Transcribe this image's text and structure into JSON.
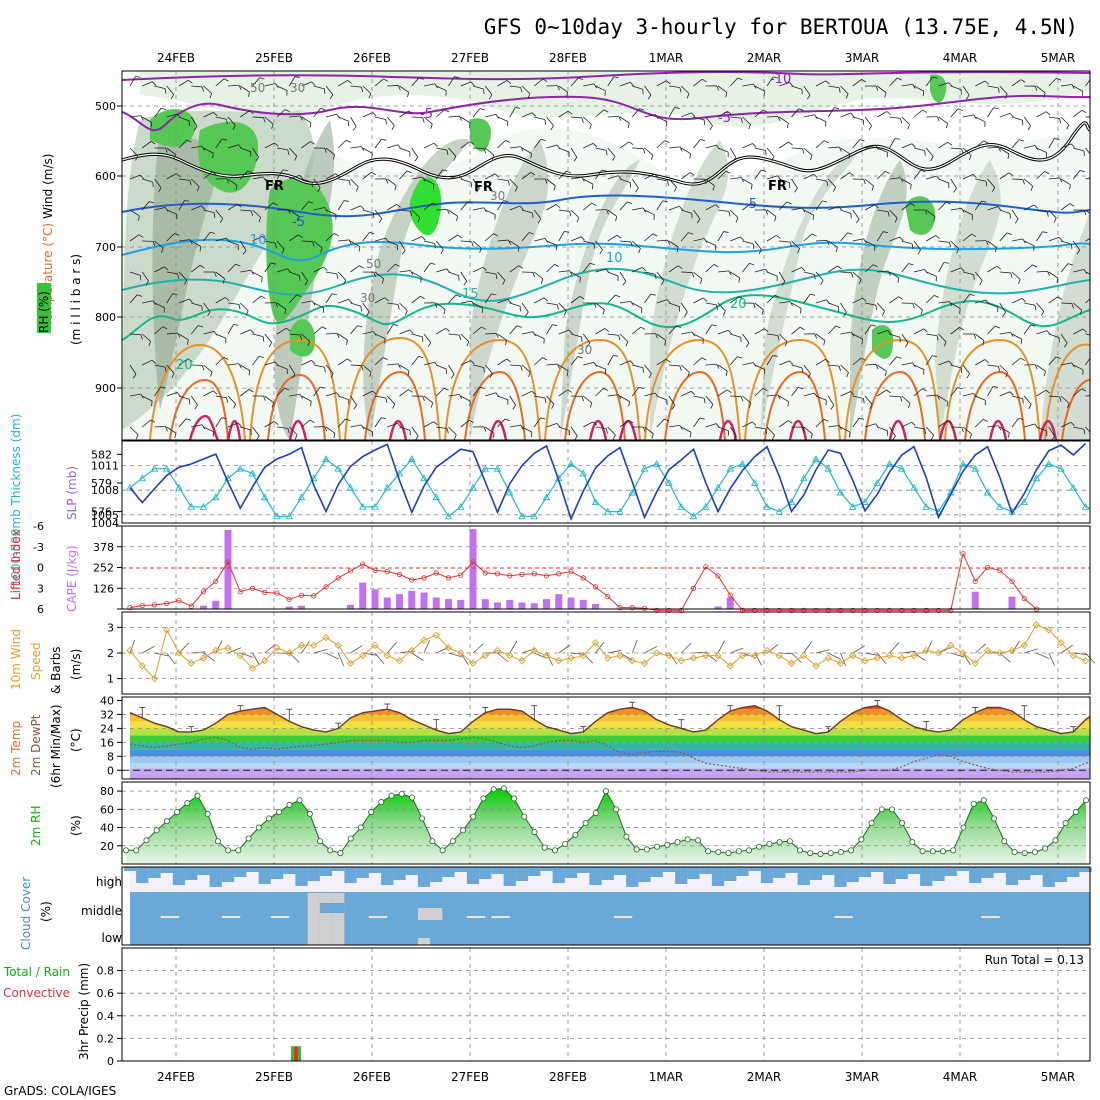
{
  "title": "GFS 0~10day 3-hourly for BERTOUA (13.75E, 4.5N)",
  "footer": "GrADS: COLA/IGES",
  "dates": [
    "24FEB",
    "25FEB",
    "26FEB",
    "27FEB",
    "28FEB",
    "1MAR",
    "2MAR",
    "3MAR",
    "4MAR",
    "5MAR"
  ],
  "panels": {
    "upper": {
      "labels": {
        "rh": "RH (%)",
        "temperature": "Temperature (°C)",
        "wind": "Wind (m/s)",
        "pressure": "(m i l l i b a r s)"
      },
      "ticks": [
        "500",
        "600",
        "700",
        "800",
        "900"
      ],
      "contour_labels": [
        "-10",
        "-5",
        "-5",
        "FR",
        "FR",
        "FR",
        "-5",
        "-5",
        "10",
        "10",
        "15",
        "20",
        "20",
        "50",
        "30",
        "30",
        "50",
        "30",
        "30"
      ]
    },
    "thickness": {
      "labels": {
        "thickness": "1000-500mb Thickness (dm)",
        "slp": "SLP (mb)"
      },
      "left_ticks": [
        "582",
        "579",
        "576"
      ],
      "right_ticks": [
        "1011",
        "1008",
        "1005",
        "1004"
      ]
    },
    "cape": {
      "labels": {
        "li": "Lifted Index",
        "cape": "CAPE (J/kg)"
      },
      "left_ticks": [
        "-6",
        "-3",
        "0",
        "3",
        "6"
      ],
      "right_ticks": [
        "378",
        "252",
        "126"
      ]
    },
    "wind10m": {
      "labels": {
        "a": "10m Wind",
        "b": "Speed",
        "c": "& Barbs",
        "unit": "(m/s)"
      },
      "ticks": [
        "3",
        "2",
        "1"
      ]
    },
    "temp2m": {
      "labels": {
        "a": "2m Temp",
        "b": "2m DewPt",
        "c": "(6hr Min/Max)",
        "unit": "(°C)"
      },
      "ticks": [
        "40",
        "32",
        "24",
        "16",
        "8",
        "0"
      ]
    },
    "rh2m": {
      "labels": {
        "a": "2m RH",
        "unit": "(%)"
      },
      "ticks": [
        "80",
        "60",
        "40",
        "20"
      ]
    },
    "cloud": {
      "labels": {
        "a": "Cloud Cover",
        "unit": "(%)",
        "high": "high",
        "middle": "middle",
        "low": "low"
      }
    },
    "precip": {
      "labels": {
        "a": "Total / Rain",
        "b": "Convective",
        "c": "3hr Precip (mm)"
      },
      "ticks": [
        "0.8",
        "0.6",
        "0.4",
        "0.2",
        "0"
      ],
      "run_total": "Run Total = 0.13"
    }
  },
  "colors": {
    "rh": "#34c434",
    "thick": "#22b8c8",
    "slp": "#1c3ec8",
    "li": "#e03030",
    "cape": "#c070f0",
    "wind": "#e0a030",
    "cloud": "#6aa8d8",
    "rh2m": "#10d010"
  },
  "chart_data": [
    {
      "type": "line",
      "title": "1000-500mb Thickness / SLP",
      "x_unit": "3-hourly steps from 24FEB",
      "series": [
        {
          "name": "thickness_dm",
          "values": [
            578.5,
            579.5,
            580.5,
            580.5,
            578.5,
            576.5,
            576.5,
            577.5,
            579.5,
            580.5,
            580,
            577.5,
            575.5,
            575.5,
            577.5,
            579.5,
            581.5,
            580.5,
            578.5,
            576.5,
            576.5,
            578.5,
            580,
            581.5,
            579.5,
            577.5,
            575.5,
            576.5,
            578.5,
            580.5,
            580.5,
            578,
            575.5,
            575.5,
            577.5,
            579.5,
            581,
            580,
            577,
            576,
            576,
            578,
            580.5,
            581,
            579,
            576.5,
            575.5,
            576.5,
            578.5,
            580.5,
            581,
            579,
            576.5,
            576,
            577,
            579.5,
            581.5,
            580.5,
            578,
            576.5,
            577,
            579,
            581,
            580.5,
            578.5,
            576.5,
            576,
            578,
            581,
            580.5,
            578,
            576.5,
            576,
            577,
            579.5,
            581,
            580.5,
            578.5,
            576.5,
            576
          ]
        },
        {
          "name": "slp_mb",
          "values": [
            1008.3,
            1006.5,
            1008.2,
            1009.8,
            1010.8,
            1011.2,
            1011.8,
            1012.4,
            1009,
            1005.8,
            1008.4,
            1010.8,
            1011.8,
            1012.4,
            1013.2,
            1008.6,
            1005.4,
            1008.7,
            1010.9,
            1012.1,
            1012.9,
            1013.6,
            1009.2,
            1005.3,
            1008.5,
            1010.8,
            1011.9,
            1013,
            1012.7,
            1009,
            1005.3,
            1008.8,
            1011,
            1012.5,
            1013.4,
            1009.2,
            1004.5,
            1007.9,
            1010.7,
            1012.2,
            1013.2,
            1009,
            1004.7,
            1007.8,
            1010.5,
            1011.7,
            1013,
            1008.9,
            1005.4,
            1008.2,
            1010.4,
            1012.1,
            1013.3,
            1009.7,
            1005.4,
            1007.4,
            1010.5,
            1012.9,
            1012.5,
            1009.2,
            1005.5,
            1007.5,
            1010.2,
            1012.3,
            1013.3,
            1009.5,
            1004.7,
            1007.5,
            1010.3,
            1012.3,
            1013.3,
            1009.6,
            1005.2,
            1007.6,
            1010.5,
            1012.8,
            1013.5,
            1012.3,
            1013.7
          ]
        }
      ],
      "ylim_left": [
        574.8,
        583.4
      ],
      "ylim_right": [
        1004,
        1014
      ]
    },
    {
      "type": "bar",
      "title": "Lifted Index / CAPE",
      "series": [
        {
          "name": "cape_jkg",
          "sparse": [
            [
              6,
              20
            ],
            [
              7,
              50
            ],
            [
              8,
              480
            ],
            [
              13,
              15
            ],
            [
              14,
              20
            ],
            [
              18,
              25
            ],
            [
              19,
              160
            ],
            [
              20,
              120
            ],
            [
              21,
              70
            ],
            [
              22,
              90
            ],
            [
              23,
              110
            ],
            [
              24,
              100
            ],
            [
              25,
              70
            ],
            [
              26,
              60
            ],
            [
              27,
              55
            ],
            [
              28,
              485
            ],
            [
              29,
              60
            ],
            [
              30,
              40
            ],
            [
              31,
              55
            ],
            [
              32,
              40
            ],
            [
              33,
              35
            ],
            [
              34,
              60
            ],
            [
              35,
              90
            ],
            [
              36,
              70
            ],
            [
              37,
              55
            ],
            [
              38,
              30
            ],
            [
              48,
              15
            ],
            [
              49,
              70
            ],
            [
              69,
              105
            ],
            [
              72,
              75
            ]
          ]
        },
        {
          "name": "lifted_index",
          "values": [
            5.8,
            5.5,
            5.4,
            5.2,
            4.8,
            5.6,
            3.5,
            2,
            -0.8,
            3.5,
            3,
            3.6,
            3.7,
            4.6,
            4,
            4.1,
            2.8,
            1.5,
            0.5,
            -0.5,
            0.4,
            0.6,
            1,
            1.8,
            1.5,
            0.8,
            1.5,
            1.1,
            -0.8,
            0.8,
            0.9,
            1.2,
            1,
            0.9,
            1.2,
            0.9,
            0.6,
            1.5,
            2.8,
            4.2,
            5.8,
            5.8,
            5.9,
            6.2,
            6.2,
            6.2,
            3,
            -0.1,
            1.2,
            4,
            6.2,
            6.2,
            6.2,
            6.2,
            6.2,
            6.2,
            6.2,
            6.2,
            6.2,
            6.2,
            6.2,
            6.2,
            6.2,
            6.2,
            6.2,
            6.2,
            6.2,
            6.2,
            -2,
            2,
            0,
            0.4,
            2,
            4.5,
            6
          ]
        }
      ],
      "ylim_left": [
        6,
        -6
      ],
      "ylim_right": [
        0,
        504
      ]
    },
    {
      "type": "line",
      "title": "10m Wind Speed",
      "series": [
        {
          "name": "speed_ms",
          "values": [
            2.1,
            1.5,
            1,
            2.9,
            2,
            1.6,
            1.8,
            2.1,
            2.2,
            1.9,
            1.4,
            1.7,
            2.2,
            2,
            2.3,
            2.3,
            2.6,
            2.3,
            1.6,
            1.9,
            2.3,
            1.9,
            1.7,
            2.1,
            2.5,
            2.7,
            2.2,
            2,
            1.6,
            1.9,
            2.1,
            1.9,
            1.7,
            2.1,
            1.9,
            1.7,
            1.8,
            1.9,
            2.4,
            1.8,
            1.9,
            1.7,
            1.6,
            2,
            1.9,
            1.7,
            1.8,
            1.9,
            1.9,
            1.5,
            1.9,
            1.9,
            2.1,
            1.9,
            1.6,
            1.9,
            1.5,
            1.8,
            1.6,
            1.9,
            1.7,
            1.8,
            1.9,
            1.8,
            1.9,
            2.1,
            2,
            2.3,
            2,
            1.6,
            2.1,
            2,
            2.1,
            2.3,
            3.1,
            2.9,
            2.4,
            1.9,
            1.7
          ]
        }
      ],
      "ylim": [
        0.4,
        3.6
      ]
    },
    {
      "type": "area",
      "title": "2m Temp / DewPt",
      "series": [
        {
          "name": "temp_c",
          "values": [
            33,
            30,
            27,
            25,
            22,
            22,
            23,
            27,
            32,
            34,
            35,
            36,
            32,
            28,
            25,
            23,
            22,
            24,
            30,
            33,
            34,
            35,
            33,
            29,
            26,
            23,
            21,
            22,
            28,
            33,
            35,
            35,
            34,
            29,
            25,
            23,
            21,
            22,
            28,
            33,
            35,
            36,
            34,
            29,
            26,
            24,
            22,
            23,
            29,
            34,
            36,
            37,
            34,
            29,
            25,
            23,
            21,
            22,
            28,
            33,
            36,
            37,
            34,
            29,
            25,
            23,
            22,
            23,
            29,
            33,
            36,
            36,
            34,
            29,
            25,
            23,
            21,
            22,
            29,
            34,
            36,
            36,
            33,
            29,
            25,
            23,
            21,
            19,
            19
          ]
        },
        {
          "name": "dewpt_c",
          "values": [
            15,
            14,
            13,
            14,
            15,
            16,
            18,
            19,
            17,
            13,
            12,
            13,
            12,
            13,
            14,
            14,
            15,
            16,
            17,
            17,
            17,
            17,
            16,
            16,
            17,
            17,
            17,
            18,
            19,
            18,
            16,
            14,
            13,
            14,
            16,
            17,
            17,
            16,
            17,
            14,
            10,
            9,
            10,
            11,
            11,
            10,
            7,
            4,
            3,
            2,
            1,
            0,
            -1,
            -1,
            -1,
            -1,
            -1,
            -1,
            -1,
            -1,
            0,
            0,
            0,
            2,
            5,
            7,
            9,
            8,
            5,
            3,
            1,
            0,
            -1,
            -1,
            -1,
            -1,
            0,
            1,
            4,
            6
          ]
        }
      ],
      "ylim": [
        -5,
        42
      ]
    },
    {
      "type": "area",
      "title": "2m RH (%)",
      "series": [
        {
          "name": "rh_pct",
          "values": [
            15,
            15,
            26,
            37,
            47,
            57,
            67,
            75,
            55,
            25,
            15,
            15,
            28,
            40,
            50,
            57,
            65,
            70,
            55,
            25,
            15,
            12,
            28,
            40,
            57,
            68,
            75,
            77,
            73,
            50,
            25,
            15,
            25,
            37,
            52,
            72,
            82,
            83,
            72,
            52,
            35,
            18,
            15,
            22,
            32,
            45,
            56,
            80,
            60,
            30,
            16,
            16,
            19,
            21,
            24,
            27,
            26,
            14,
            13,
            12,
            14,
            15,
            19,
            22,
            24,
            25,
            15,
            12,
            11,
            12,
            13,
            15,
            27,
            45,
            60,
            60,
            45,
            24,
            14,
            14,
            14,
            15,
            40,
            66,
            70,
            50,
            25,
            13,
            12,
            13,
            17,
            26,
            45,
            57,
            70
          ]
        }
      ],
      "ylim": [
        0,
        90
      ]
    },
    {
      "type": "table",
      "title": "3hr Precip (mm)",
      "categories": [
        "total",
        "rain",
        "convective"
      ],
      "values": [
        0.13,
        0.12,
        0.13
      ],
      "ylim": [
        0,
        1
      ]
    }
  ]
}
